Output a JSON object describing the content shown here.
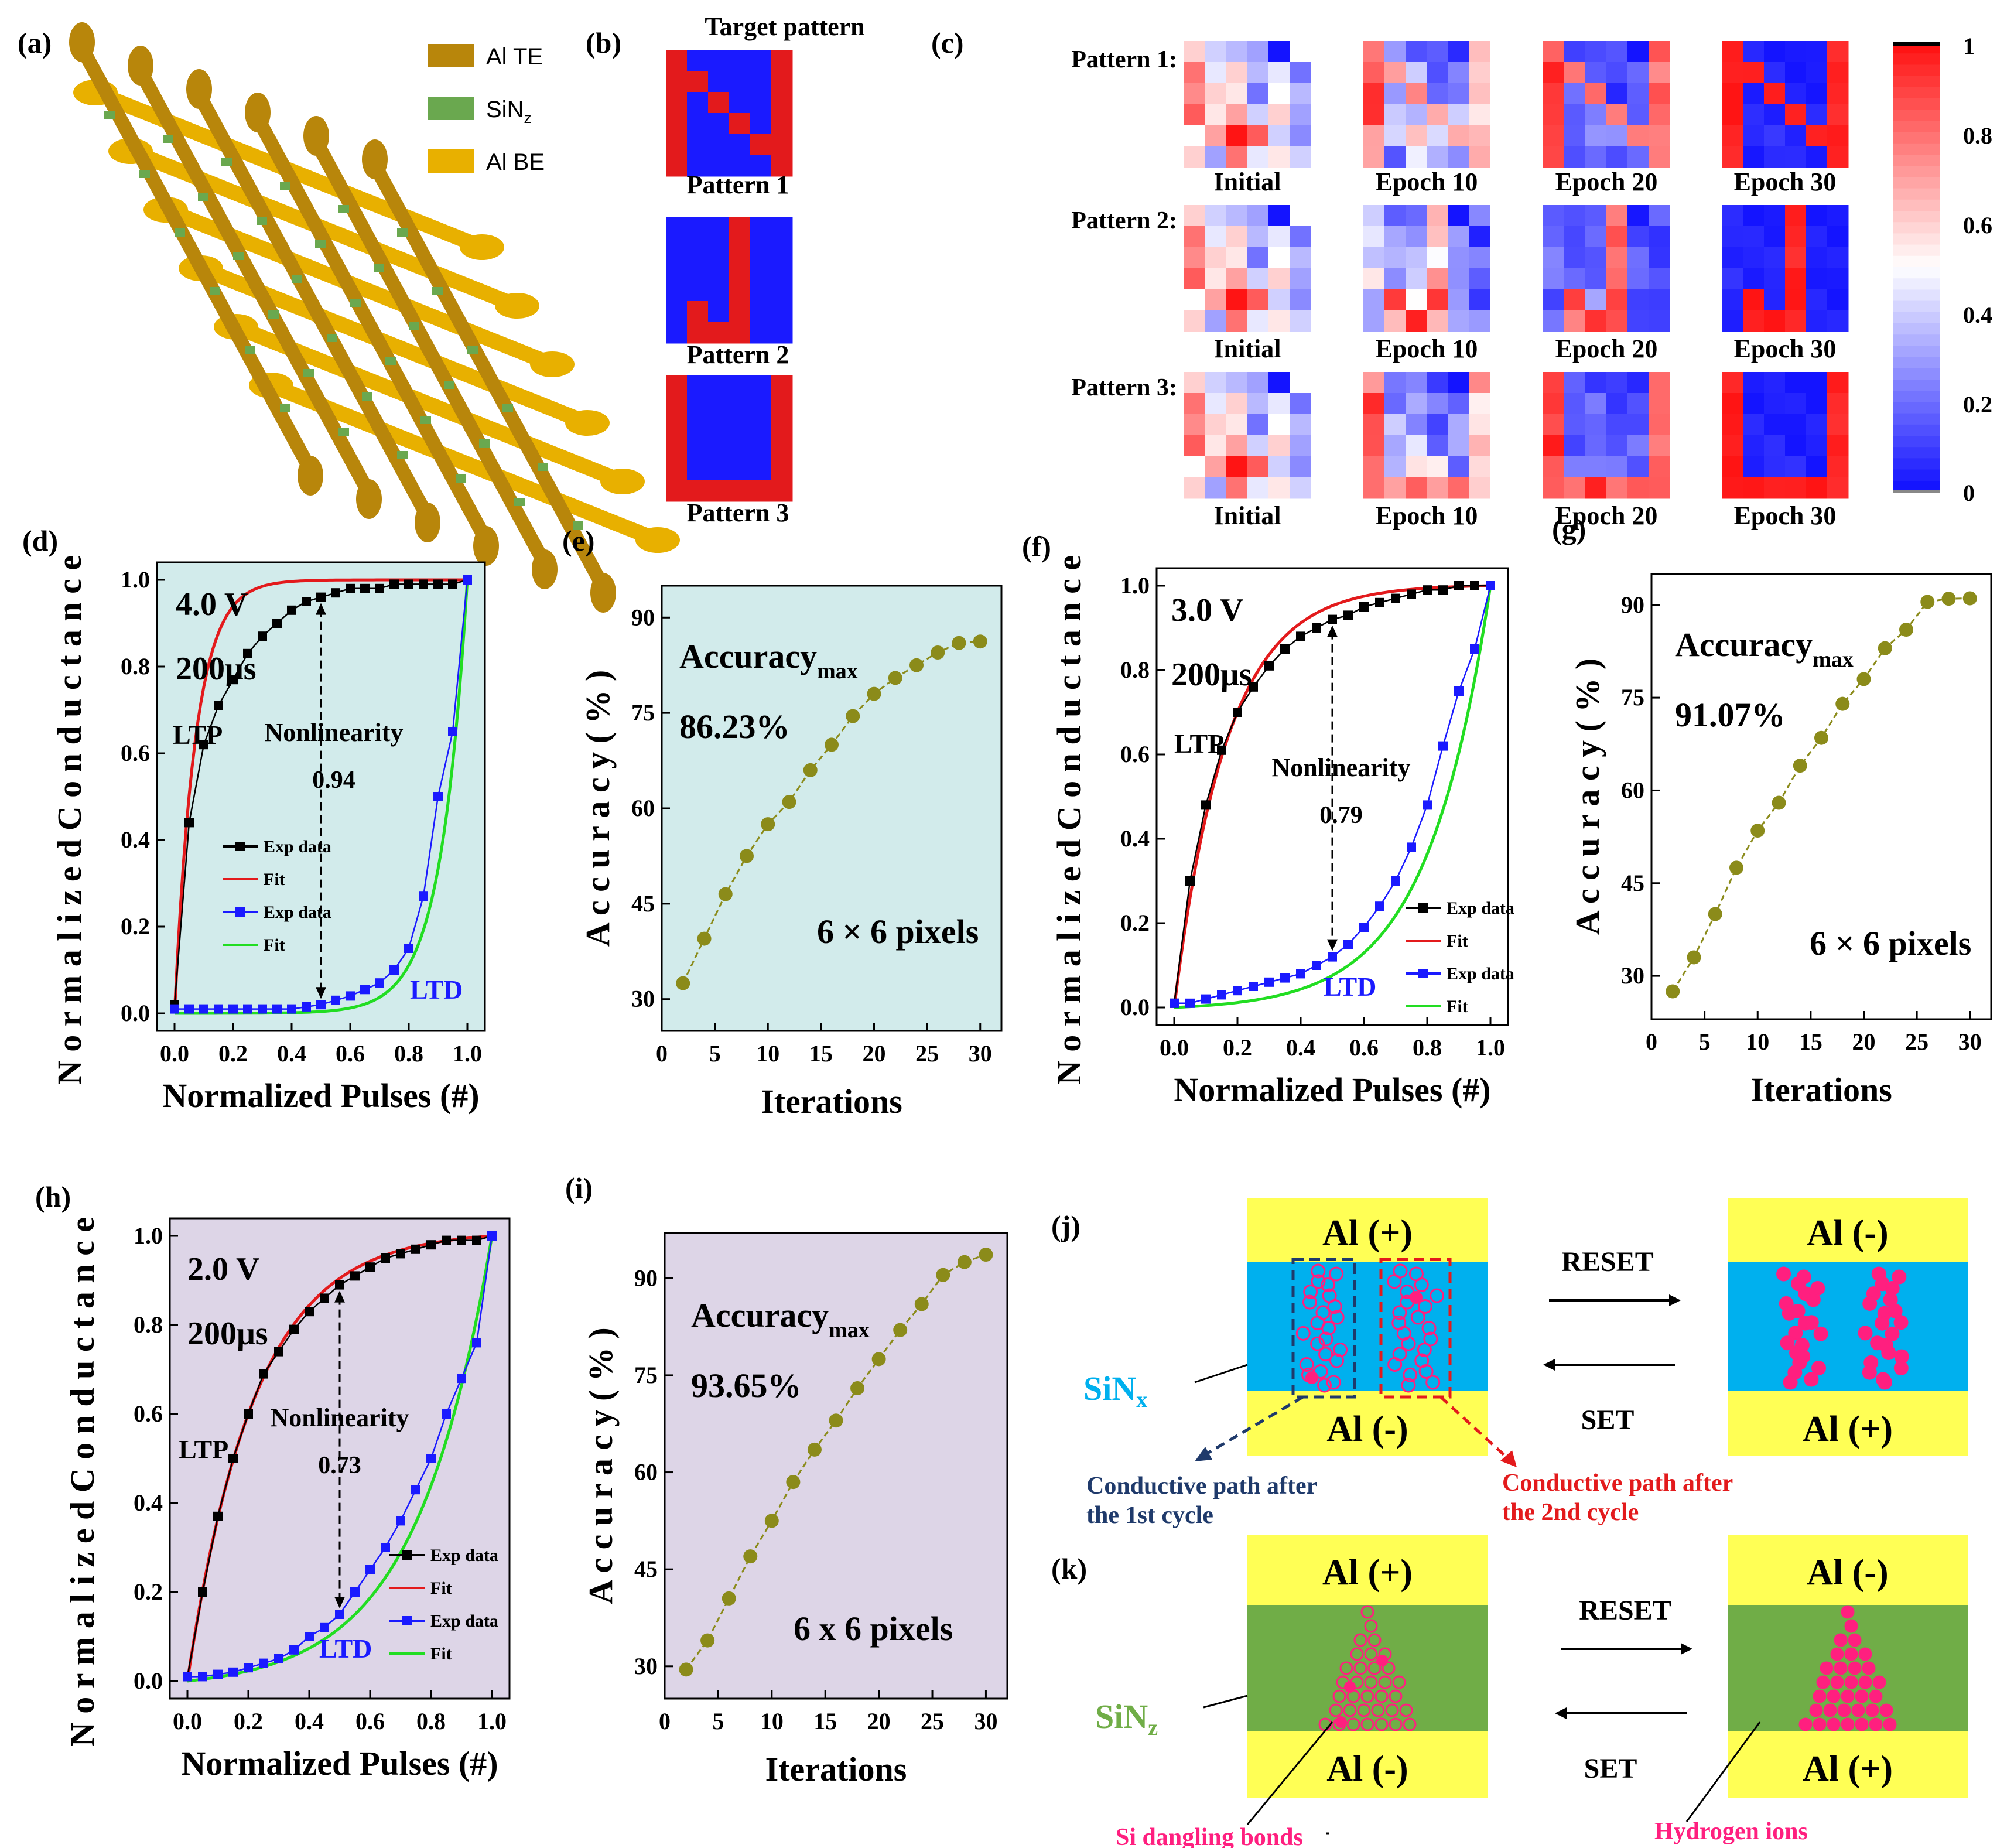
{
  "colors": {
    "red": "#e31a1c",
    "blue": "#1a1aff",
    "black": "#000000",
    "olive": "#8b8b1a",
    "bg_d": "#d2ebeb",
    "bg_h": "#ddd5e7",
    "yellow": "#ffff55",
    "cyan": "#00b0ee",
    "green": "#70ad47",
    "pink": "#ff1f7f",
    "te_gold": "#b8860b",
    "be_gold": "#e8b000",
    "sinz_green": "#6aa84f",
    "navy": "#1f3a6b"
  },
  "panel_a": {
    "letter": "(a)",
    "legend": [
      {
        "label": "Al TE",
        "color": "#b8860b"
      },
      {
        "label": "SiN",
        "sub": "z",
        "color": "#6aa84f"
      },
      {
        "label": "Al BE",
        "color": "#e8b000"
      }
    ]
  },
  "panel_b": {
    "letter": "(b)",
    "title": "Target pattern",
    "labels": [
      "Pattern 1",
      "Pattern 2",
      "Pattern 3"
    ],
    "patterns": [
      [
        [
          1,
          0,
          0,
          0,
          0,
          1
        ],
        [
          1,
          1,
          0,
          0,
          0,
          1
        ],
        [
          1,
          0,
          1,
          0,
          0,
          1
        ],
        [
          1,
          0,
          0,
          1,
          0,
          1
        ],
        [
          1,
          0,
          0,
          0,
          1,
          1
        ],
        [
          1,
          0,
          0,
          0,
          0,
          1
        ]
      ],
      [
        [
          0,
          0,
          0,
          1,
          0,
          0
        ],
        [
          0,
          0,
          0,
          1,
          0,
          0
        ],
        [
          0,
          0,
          0,
          1,
          0,
          0
        ],
        [
          0,
          0,
          0,
          1,
          0,
          0
        ],
        [
          0,
          1,
          0,
          1,
          0,
          0
        ],
        [
          0,
          1,
          1,
          1,
          0,
          0
        ]
      ],
      [
        [
          1,
          0,
          0,
          0,
          0,
          1
        ],
        [
          1,
          0,
          0,
          0,
          0,
          1
        ],
        [
          1,
          0,
          0,
          0,
          0,
          1
        ],
        [
          1,
          0,
          0,
          0,
          0,
          1
        ],
        [
          1,
          0,
          0,
          0,
          0,
          1
        ],
        [
          1,
          1,
          1,
          1,
          1,
          1
        ]
      ]
    ]
  },
  "panel_c": {
    "letter": "(c)",
    "row_labels": [
      "Pattern 1:",
      "Pattern 2:",
      "Pattern 3:"
    ],
    "col_labels": [
      "Initial",
      "Epoch 10",
      "Epoch 20",
      "Epoch 30"
    ],
    "colorbar_ticks": [
      "1",
      "0.8",
      "0.6",
      "0.4",
      "0.2",
      "0"
    ],
    "initial": [
      [
        0.6,
        0.4,
        0.35,
        0.3,
        0.0,
        0.5
      ],
      [
        0.8,
        0.45,
        0.6,
        0.35,
        0.45,
        0.2
      ],
      [
        0.75,
        0.6,
        0.55,
        0.2,
        0.5,
        0.35
      ],
      [
        0.85,
        0.55,
        0.7,
        0.4,
        0.6,
        0.3
      ],
      [
        0.5,
        0.7,
        1.0,
        0.85,
        0.4,
        0.25
      ],
      [
        0.6,
        0.3,
        0.8,
        0.45,
        0.55,
        0.4
      ]
    ]
  },
  "panel_d": {
    "letter": "(d)",
    "voltage": "4.0 V",
    "pulse": "200μs",
    "ltp_label": "LTP",
    "ltd_label": "LTD",
    "nonlinearity_label": "Nonlinearity",
    "nonlinearity_value": "0.94",
    "xlabel": "Normalized Pulses (#)",
    "ylabel": "N o r m a l i z e d   C o n d u c t a n c e",
    "legend": [
      "Exp data",
      "Fit",
      "Exp data",
      "Fit"
    ],
    "xticks": [
      "0.0",
      "0.2",
      "0.4",
      "0.6",
      "0.8",
      "1.0"
    ],
    "yticks": [
      "0.0",
      "0.2",
      "0.4",
      "0.6",
      "0.8",
      "1.0"
    ]
  },
  "panel_e": {
    "letter": "(e)",
    "acc_main": "Accuracy",
    "acc_sub": "max",
    "acc_value": "86.23%",
    "pixels": "6 × 6 pixels",
    "xlabel": "Iterations",
    "ylabel": "A c c u r a c y  ( % )",
    "xticks": [
      "0",
      "5",
      "10",
      "15",
      "20",
      "25",
      "30"
    ],
    "yticks": [
      "30",
      "45",
      "60",
      "75",
      "90"
    ]
  },
  "panel_f": {
    "letter": "(f)",
    "voltage": "3.0 V",
    "pulse": "200μs",
    "ltp_label": "LTP",
    "ltd_label": "LTD",
    "nonlinearity_label": "Nonlinearity",
    "nonlinearity_value": "0.79",
    "xlabel": "Normalized Pulses (#)",
    "ylabel": "N o r m a l i z e d   C o n d u c t a n c e",
    "legend": [
      "Exp data",
      "Fit",
      "Exp data",
      "Fit"
    ],
    "xticks": [
      "0.0",
      "0.2",
      "0.4",
      "0.6",
      "0.8",
      "1.0"
    ],
    "yticks": [
      "0.0",
      "0.2",
      "0.4",
      "0.6",
      "0.8",
      "1.0"
    ]
  },
  "panel_g": {
    "letter": "(g)",
    "acc_main": "Accuracy",
    "acc_sub": "max",
    "acc_value": "91.07%",
    "pixels": "6 × 6 pixels",
    "xlabel": "Iterations",
    "ylabel": "A c c u r a c y  ( % )",
    "xticks": [
      "0",
      "5",
      "10",
      "15",
      "20",
      "25",
      "30"
    ],
    "yticks": [
      "30",
      "45",
      "60",
      "75",
      "90"
    ]
  },
  "panel_h": {
    "letter": "(h)",
    "voltage": "2.0 V",
    "pulse": "200μs",
    "ltp_label": "LTP",
    "ltd_label": "LTD",
    "nonlinearity_label": "Nonlinearity",
    "nonlinearity_value": "0.73",
    "xlabel": "Normalized Pulses (#)",
    "ylabel": "N o r m a l i z e d   C o n d u c t a n c e",
    "legend": [
      "Exp data",
      "Fit",
      "Exp data",
      "Fit"
    ],
    "xticks": [
      "0.0",
      "0.2",
      "0.4",
      "0.6",
      "0.8",
      "1.0"
    ],
    "yticks": [
      "0.0",
      "0.2",
      "0.4",
      "0.6",
      "0.8",
      "1.0"
    ]
  },
  "panel_i": {
    "letter": "(i)",
    "acc_main": "Accuracy",
    "acc_sub": "max",
    "acc_value": "93.65%",
    "pixels": "6 x 6 pixels",
    "xlabel": "Iterations",
    "ylabel": "A c c u r a c y  ( % )",
    "xticks": [
      "0",
      "5",
      "10",
      "15",
      "20",
      "25",
      "30"
    ],
    "yticks": [
      "30",
      "45",
      "60",
      "75",
      "90"
    ]
  },
  "panel_j": {
    "letter": "(j)",
    "left_top": "Al (+)",
    "left_bottom": "Al (-)",
    "right_top": "Al (-)",
    "right_bottom": "Al (+)",
    "reset": "RESET",
    "set": "SET",
    "layer": "SiN",
    "layer_sub": "x",
    "path1": [
      "Conductive path after",
      "the 1st cycle"
    ],
    "path2": [
      "Conductive path after",
      "the 2nd cycle"
    ]
  },
  "panel_k": {
    "letter": "(k)",
    "left_top": "Al (+)",
    "left_bottom": "Al (-)",
    "right_top": "Al (-)",
    "right_bottom": "Al (+)",
    "reset": "RESET",
    "set": "SET",
    "layer": "SiN",
    "layer_sub": "z",
    "dangling": "Si dangling bonds",
    "hydrogen": "Hydrogen ions"
  },
  "chart_data": [
    {
      "panel": "d",
      "type": "line",
      "xlim": [
        0,
        1
      ],
      "ylim": [
        0,
        1
      ],
      "xlabel": "Normalized Pulses (#)",
      "ylabel": "Normalized Conductance",
      "ltp_exp": {
        "x": [
          0,
          0.05,
          0.1,
          0.15,
          0.2,
          0.25,
          0.3,
          0.35,
          0.4,
          0.45,
          0.5,
          0.55,
          0.6,
          0.65,
          0.7,
          0.75,
          0.8,
          0.85,
          0.9,
          0.95,
          1.0
        ],
        "y": [
          0.02,
          0.44,
          0.62,
          0.71,
          0.77,
          0.83,
          0.87,
          0.9,
          0.93,
          0.95,
          0.96,
          0.97,
          0.98,
          0.98,
          0.98,
          0.99,
          0.99,
          0.99,
          0.99,
          0.99,
          1.0
        ]
      },
      "ltp_fit_k": 14.0,
      "ltd_exp": {
        "x": [
          0,
          0.05,
          0.1,
          0.15,
          0.2,
          0.25,
          0.3,
          0.35,
          0.4,
          0.45,
          0.5,
          0.55,
          0.6,
          0.65,
          0.7,
          0.75,
          0.8,
          0.85,
          0.9,
          0.95,
          1.0
        ],
        "y": [
          0.01,
          0.01,
          0.01,
          0.01,
          0.01,
          0.01,
          0.01,
          0.01,
          0.01,
          0.015,
          0.02,
          0.03,
          0.04,
          0.055,
          0.07,
          0.1,
          0.15,
          0.27,
          0.5,
          0.65,
          1.0
        ]
      },
      "ltd_fit_k": 11.0,
      "nonlinearity_x": 0.5
    },
    {
      "panel": "e",
      "type": "line",
      "xlim": [
        0,
        32
      ],
      "ylim": [
        25,
        95
      ],
      "x": [
        2,
        4,
        6,
        8,
        10,
        12,
        14,
        16,
        18,
        20,
        22,
        24,
        26,
        28,
        30
      ],
      "y": [
        32.5,
        39.5,
        46.5,
        52.5,
        57.5,
        61.0,
        66.0,
        70.0,
        74.5,
        78.0,
        80.5,
        82.5,
        84.5,
        86.0,
        86.23
      ]
    },
    {
      "panel": "f",
      "type": "line",
      "xlim": [
        0,
        1
      ],
      "ylim": [
        0,
        1
      ],
      "xlabel": "Normalized Pulses (#)",
      "ylabel": "Normalized Conductance",
      "ltp_exp": {
        "x": [
          0,
          0.05,
          0.1,
          0.15,
          0.2,
          0.25,
          0.3,
          0.35,
          0.4,
          0.45,
          0.5,
          0.55,
          0.6,
          0.65,
          0.7,
          0.75,
          0.8,
          0.85,
          0.9,
          0.95,
          1.0
        ],
        "y": [
          0.01,
          0.3,
          0.48,
          0.61,
          0.7,
          0.76,
          0.81,
          0.85,
          0.88,
          0.9,
          0.92,
          0.93,
          0.95,
          0.96,
          0.97,
          0.98,
          0.99,
          0.99,
          1.0,
          1.0,
          1.0
        ]
      },
      "ltp_fit_k": 6.0,
      "ltd_exp": {
        "x": [
          0,
          0.05,
          0.1,
          0.15,
          0.2,
          0.25,
          0.3,
          0.35,
          0.4,
          0.45,
          0.5,
          0.55,
          0.6,
          0.65,
          0.7,
          0.75,
          0.8,
          0.85,
          0.9,
          0.95,
          1.0
        ],
        "y": [
          0.01,
          0.01,
          0.02,
          0.03,
          0.04,
          0.05,
          0.06,
          0.07,
          0.08,
          0.1,
          0.12,
          0.15,
          0.19,
          0.24,
          0.3,
          0.38,
          0.48,
          0.62,
          0.75,
          0.85,
          1.0
        ]
      },
      "ltd_fit_k": 5.0,
      "nonlinearity_x": 0.5
    },
    {
      "panel": "g",
      "type": "line",
      "xlim": [
        0,
        32
      ],
      "ylim": [
        23,
        95
      ],
      "x": [
        2,
        4,
        6,
        8,
        10,
        12,
        14,
        16,
        18,
        20,
        22,
        24,
        26,
        28,
        30
      ],
      "y": [
        27.5,
        33.0,
        40.0,
        47.5,
        53.5,
        58.0,
        64.0,
        68.5,
        74.0,
        78.0,
        83.0,
        86.0,
        90.5,
        91.0,
        91.07
      ]
    },
    {
      "panel": "h",
      "type": "line",
      "xlim": [
        0,
        1
      ],
      "ylim": [
        0,
        1
      ],
      "xlabel": "Normalized Pulses (#)",
      "ylabel": "Normalized Conductance",
      "ltp_exp": {
        "x": [
          0,
          0.05,
          0.1,
          0.15,
          0.2,
          0.25,
          0.3,
          0.35,
          0.4,
          0.45,
          0.5,
          0.55,
          0.6,
          0.65,
          0.7,
          0.75,
          0.8,
          0.85,
          0.9,
          0.95,
          1.0
        ],
        "y": [
          0.01,
          0.2,
          0.37,
          0.5,
          0.6,
          0.69,
          0.74,
          0.79,
          0.83,
          0.86,
          0.89,
          0.91,
          0.93,
          0.95,
          0.96,
          0.97,
          0.98,
          0.99,
          0.99,
          0.99,
          1.0
        ]
      },
      "ltp_fit_k": 4.5,
      "ltd_exp": {
        "x": [
          0,
          0.05,
          0.1,
          0.15,
          0.2,
          0.25,
          0.3,
          0.35,
          0.4,
          0.45,
          0.5,
          0.55,
          0.6,
          0.65,
          0.7,
          0.75,
          0.8,
          0.85,
          0.9,
          0.95,
          1.0
        ],
        "y": [
          0.01,
          0.01,
          0.015,
          0.02,
          0.03,
          0.04,
          0.05,
          0.07,
          0.1,
          0.12,
          0.15,
          0.2,
          0.25,
          0.3,
          0.36,
          0.43,
          0.5,
          0.6,
          0.68,
          0.76,
          1.0
        ]
      },
      "ltd_fit_k": 4.0,
      "nonlinearity_x": 0.5
    },
    {
      "panel": "i",
      "type": "line",
      "xlim": [
        0,
        32
      ],
      "ylim": [
        25,
        97
      ],
      "x": [
        2,
        4,
        6,
        8,
        10,
        12,
        14,
        16,
        18,
        20,
        22,
        24,
        26,
        28,
        30
      ],
      "y": [
        29.5,
        34.0,
        40.5,
        47.0,
        52.5,
        58.5,
        63.5,
        68.0,
        73.0,
        77.5,
        82.0,
        86.0,
        90.5,
        92.5,
        93.65
      ]
    }
  ]
}
